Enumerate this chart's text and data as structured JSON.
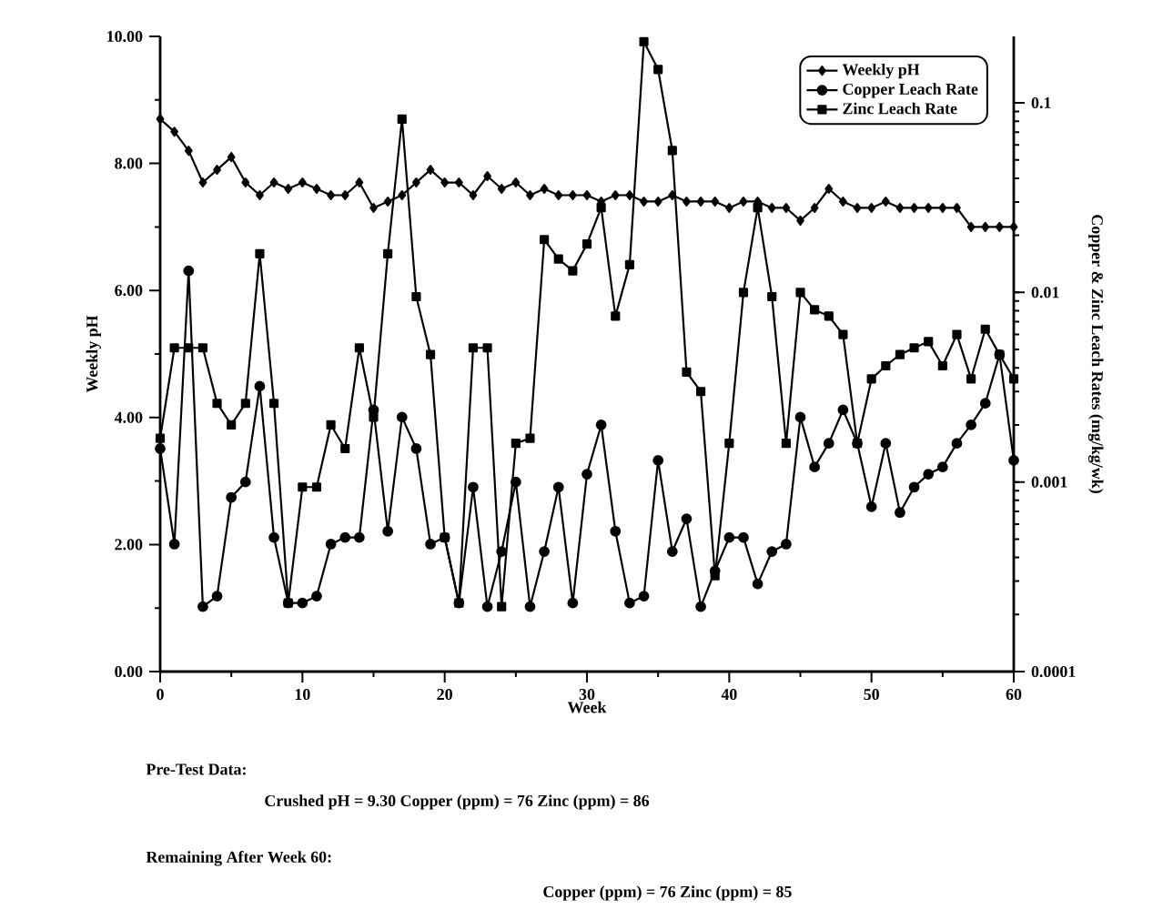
{
  "chart_data": {
    "type": "line",
    "xlabel": "Week",
    "ylabel": "Weekly pH",
    "y2label": "Copper & Zinc Leach Rates (mg/kg/wk)",
    "x": [
      0,
      1,
      2,
      3,
      4,
      5,
      6,
      7,
      8,
      9,
      10,
      11,
      12,
      13,
      14,
      15,
      16,
      17,
      18,
      19,
      20,
      21,
      22,
      23,
      24,
      25,
      26,
      27,
      28,
      29,
      30,
      31,
      32,
      33,
      34,
      35,
      36,
      37,
      38,
      39,
      40,
      41,
      42,
      43,
      44,
      45,
      46,
      47,
      48,
      49,
      50,
      51,
      52,
      53,
      54,
      55,
      56,
      57,
      58,
      59,
      60
    ],
    "series": [
      {
        "name": "Weekly pH",
        "color": "#000000",
        "marker": "diamond",
        "values": [
          8.7,
          8.5,
          8.2,
          7.7,
          7.9,
          8.1,
          7.7,
          7.5,
          7.7,
          7.6,
          7.7,
          7.6,
          7.5,
          7.5,
          7.7,
          7.3,
          7.4,
          7.5,
          7.7,
          7.9,
          7.7,
          7.7,
          7.5,
          7.8,
          7.6,
          7.7,
          7.5,
          7.6,
          7.5,
          7.5,
          7.5,
          7.4,
          7.5,
          7.5,
          7.4,
          7.4,
          7.5,
          7.4,
          7.4,
          7.4,
          7.3,
          7.4,
          7.4,
          7.3,
          7.3,
          7.1,
          7.3,
          7.6,
          7.4,
          7.3,
          7.3,
          7.4,
          7.3,
          7.3,
          7.3,
          7.3,
          7.3,
          7.0,
          7.0,
          7.0,
          7.0
        ]
      },
      {
        "name": "Copper Leach Rate",
        "color": "#000000",
        "marker": "circle",
        "axis": "y2",
        "values": [
          0.0015,
          0.00047,
          0.013,
          0.00022,
          0.00025,
          0.00083,
          0.001,
          0.0032,
          0.00051,
          0.00023,
          0.00023,
          0.00025,
          0.00047,
          0.00051,
          0.00051,
          0.0024,
          0.00055,
          0.0022,
          0.0015,
          0.00047,
          0.00051,
          0.00023,
          0.00094,
          0.00022,
          0.00043,
          0.001,
          0.00022,
          0.00043,
          0.00094,
          0.00023,
          0.0011,
          0.002,
          0.00055,
          0.00023,
          0.00025,
          0.0013,
          0.00043,
          0.00064,
          0.00022,
          0.00034,
          0.00051,
          0.00051,
          0.00029,
          0.00043,
          0.00047,
          0.0022,
          0.0012,
          0.0016,
          0.0024,
          0.0016,
          0.00074,
          0.0016,
          0.00069,
          0.00094,
          0.0011,
          0.0012,
          0.0016,
          0.002,
          0.0026,
          0.0047,
          0.0013
        ]
      },
      {
        "name": "Zinc Leach Rate",
        "color": "#000000",
        "marker": "square",
        "axis": "y2",
        "values": [
          0.0017,
          0.0051,
          0.0051,
          0.0051,
          0.0026,
          0.002,
          0.0026,
          0.016,
          0.0026,
          0.00023,
          0.00094,
          0.00094,
          0.002,
          0.0015,
          0.0051,
          0.0022,
          0.016,
          0.082,
          0.0095,
          0.0047,
          0.00051,
          0.00023,
          0.0051,
          0.0051,
          0.00022,
          0.0016,
          0.0017,
          0.019,
          0.015,
          0.013,
          0.018,
          0.028,
          0.0075,
          0.014,
          0.21,
          0.15,
          0.056,
          0.0038,
          0.003,
          0.00032,
          0.0016,
          0.01,
          0.028,
          0.0095,
          0.0016,
          0.01,
          0.0081,
          0.0075,
          0.006,
          0.0016,
          0.0035,
          0.0041,
          0.0047,
          0.0051,
          0.0055,
          0.0041,
          0.006,
          0.0035,
          0.0064,
          0.0047,
          0.0035
        ]
      }
    ],
    "xlim": [
      0,
      60
    ],
    "xticks": [
      0,
      10,
      20,
      30,
      40,
      50,
      60
    ],
    "ylim": [
      0,
      10
    ],
    "yticks": [
      {
        "value": 0,
        "label": "0.00"
      },
      {
        "value": 2,
        "label": "2.00"
      },
      {
        "value": 4,
        "label": "4.00"
      },
      {
        "value": 6,
        "label": "6.00"
      },
      {
        "value": 8,
        "label": "8.00"
      },
      {
        "value": 10,
        "label": "10.00"
      }
    ],
    "y2lim": [
      0.0001,
      0.224
    ],
    "y2ticks": [
      0.0001,
      0.001,
      0.01,
      0.1
    ],
    "log": "y2",
    "legend": "top right",
    "line_style": "solid",
    "annotations": [
      "Pre-Test Data:",
      "Crushed pH = 9.30   Copper (ppm) = 76   Zinc (ppm) = 86",
      "Remaining After Week 60:",
      "Copper (ppm) = 76   Zinc (ppm) = 85"
    ]
  }
}
